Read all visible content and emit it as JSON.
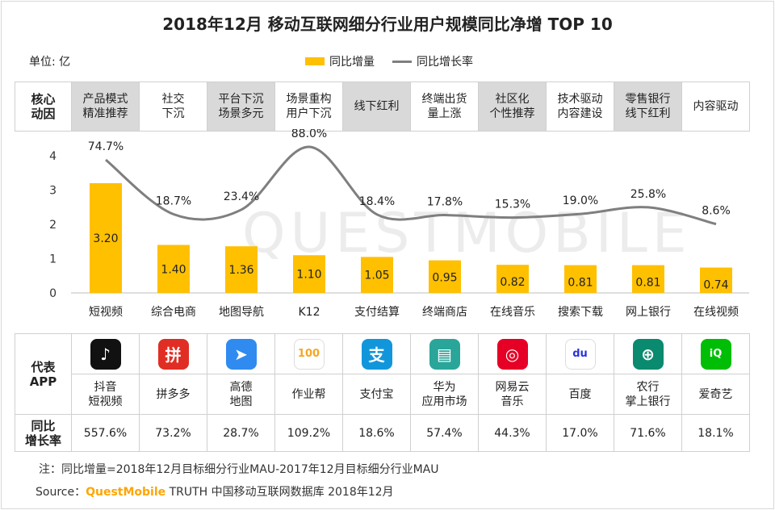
{
  "title": "2018年12月 移动互联网细分行业用户规模同比净增 TOP 10",
  "unit_label": "单位: 亿",
  "legend": {
    "bar": "同比增量",
    "line": "同比增长率"
  },
  "watermark": "QUESTMOBILE",
  "drivers_header": "核心\n动因",
  "drivers": [
    {
      "text": "产品模式\n精准推荐",
      "shaded": true
    },
    {
      "text": "社交\n下沉",
      "shaded": false
    },
    {
      "text": "平台下沉\n场景多元",
      "shaded": true
    },
    {
      "text": "场景重构\n用户下沉",
      "shaded": false
    },
    {
      "text": "线下红利",
      "shaded": true
    },
    {
      "text": "终端出货\n量上涨",
      "shaded": false
    },
    {
      "text": "社区化\n个性推荐",
      "shaded": true
    },
    {
      "text": "技术驱动\n内容建设",
      "shaded": false
    },
    {
      "text": "零售银行\n线下红利",
      "shaded": true
    },
    {
      "text": "内容驱动",
      "shaded": false
    }
  ],
  "chart_data": {
    "type": "bar",
    "categories": [
      "短视频",
      "综合电商",
      "地图导航",
      "K12",
      "支付结算",
      "终端商店",
      "在线音乐",
      "搜索下载",
      "网上银行",
      "在线视频"
    ],
    "series": [
      {
        "name": "同比增量",
        "type": "bar",
        "values": [
          3.2,
          1.4,
          1.36,
          1.1,
          1.05,
          0.95,
          0.82,
          0.81,
          0.81,
          0.74
        ],
        "labels": [
          "3.20",
          "1.40",
          "1.36",
          "1.10",
          "1.05",
          "0.95",
          "0.82",
          "0.81",
          "0.81",
          "0.74"
        ]
      },
      {
        "name": "同比增长率",
        "type": "line",
        "values": [
          74.7,
          18.7,
          23.4,
          88.0,
          18.4,
          17.8,
          15.3,
          19.0,
          25.8,
          8.6
        ],
        "labels": [
          "74.7%",
          "18.7%",
          "23.4%",
          "88.0%",
          "18.4%",
          "17.8%",
          "15.3%",
          "19.0%",
          "25.8%",
          "8.6%"
        ]
      }
    ],
    "yticks": [
      "0",
      "1",
      "2",
      "3",
      "4"
    ],
    "ylim": [
      0,
      4
    ],
    "colors": {
      "bar": "#FFC000",
      "line": "#7f7f7f"
    }
  },
  "apps_header": "代表\nAPP",
  "rate_header": "同比\n增长率",
  "apps": [
    {
      "name": "抖音\n短视频",
      "rate": "557.6%",
      "icon": "douyin-icon",
      "color": "#111111",
      "glyph": "♪"
    },
    {
      "name": "拼多多",
      "rate": "73.2%",
      "icon": "pinduoduo-icon",
      "color": "#e02e24",
      "glyph": "拼"
    },
    {
      "name": "高德\n地图",
      "rate": "28.7%",
      "icon": "amap-icon",
      "color": "#2f8bf0",
      "glyph": "➤"
    },
    {
      "name": "作业帮",
      "rate": "109.2%",
      "icon": "zuoyebang-icon",
      "color": "#ffffff",
      "glyph": "100"
    },
    {
      "name": "支付宝",
      "rate": "18.6%",
      "icon": "alipay-icon",
      "color": "#1296db",
      "glyph": "支"
    },
    {
      "name": "华为\n应用市场",
      "rate": "57.4%",
      "icon": "huawei-appgallery-icon",
      "color": "#2aa59a",
      "glyph": "▤"
    },
    {
      "name": "网易云\n音乐",
      "rate": "44.3%",
      "icon": "netease-music-icon",
      "color": "#e60026",
      "glyph": "◎"
    },
    {
      "name": "百度",
      "rate": "17.0%",
      "icon": "baidu-icon",
      "color": "#ffffff",
      "glyph": "du"
    },
    {
      "name": "农行\n掌上银行",
      "rate": "71.6%",
      "icon": "abc-bank-icon",
      "color": "#0a8a6e",
      "glyph": "⊕"
    },
    {
      "name": "爱奇艺",
      "rate": "18.1%",
      "icon": "iqiyi-icon",
      "color": "#00be06",
      "glyph": "iQ"
    }
  ],
  "note": "注：同比增量=2018年12月目标细分行业MAU-2017年12月目标细分行业MAU",
  "source": {
    "prefix": "Source：",
    "brand": "QuestMobile",
    "rest": " TRUTH 中国移动互联网数据库 2018年12月"
  }
}
